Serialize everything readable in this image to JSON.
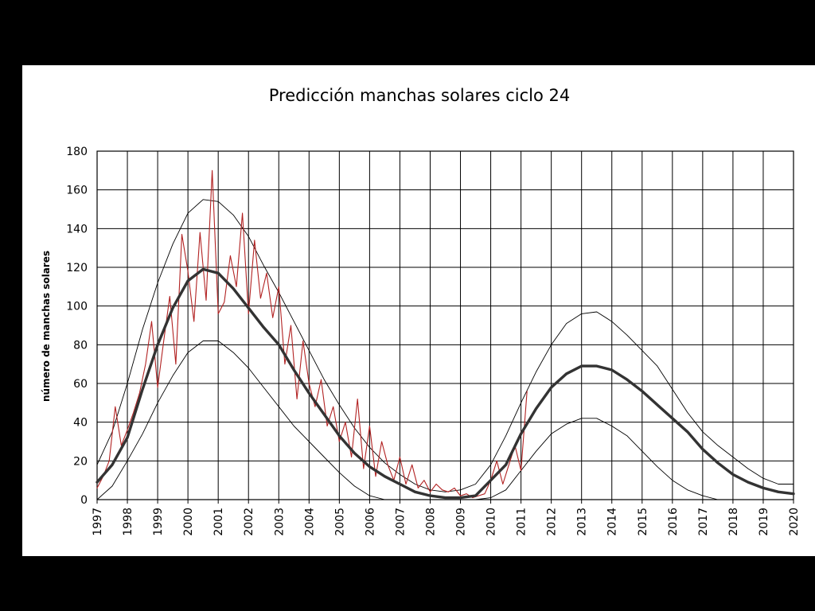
{
  "chart_data": {
    "type": "line",
    "title": "Predicción manchas solares ciclo 24",
    "xlabel": "",
    "ylabel": "número de manchas solares",
    "xlim": [
      1997,
      2020
    ],
    "ylim": [
      0,
      180
    ],
    "yticks": [
      0,
      20,
      40,
      60,
      80,
      100,
      120,
      140,
      160,
      180
    ],
    "xticks": [
      "1997",
      "1998",
      "1999",
      "2000",
      "2001",
      "2002",
      "2003",
      "2004",
      "2005",
      "2006",
      "2007",
      "2008",
      "2009",
      "2010",
      "2011",
      "2012",
      "2013",
      "2014",
      "2015",
      "2016",
      "2017",
      "2018",
      "2019",
      "2020"
    ],
    "grid": true,
    "colors": {
      "background": "#000000",
      "plot_background": "#ffffff",
      "grid": "#000000",
      "prediction": "#333333",
      "bounds": "#000000",
      "observed": "#b22222"
    },
    "series": [
      {
        "role": "prediction",
        "x": [
          1997,
          1997.5,
          1998,
          1998.5,
          1999,
          1999.5,
          2000,
          2000.5,
          2001,
          2001.5,
          2002,
          2002.5,
          2003,
          2003.5,
          2004,
          2004.5,
          2005,
          2005.5,
          2006,
          2006.5,
          2007,
          2007.5,
          2008,
          2008.5,
          2009,
          2009.5,
          2010,
          2010.5,
          2011,
          2011.5,
          2012,
          2012.5,
          2013,
          2013.5,
          2014,
          2014.5,
          2015,
          2015.5,
          2016,
          2016.5,
          2017,
          2017.5,
          2018,
          2018.5,
          2019,
          2019.5,
          2020
        ],
        "y": [
          9,
          18,
          32,
          57,
          80,
          99,
          113,
          119,
          117,
          109,
          99,
          89,
          80,
          67,
          55,
          44,
          33,
          24,
          17,
          12,
          8,
          4,
          2,
          1,
          1,
          2,
          10,
          18,
          34,
          47,
          58,
          65,
          69,
          69,
          67,
          62,
          56,
          49,
          42,
          35,
          26,
          19,
          13,
          9,
          6,
          4,
          3
        ]
      },
      {
        "role": "upper-bound",
        "x": [
          1997,
          1997.5,
          1998,
          1998.5,
          1999,
          1999.5,
          2000,
          2000.5,
          2001,
          2001.5,
          2002,
          2002.5,
          2003,
          2003.5,
          2004,
          2004.5,
          2005,
          2005.5,
          2006,
          2006.5,
          2007,
          2007.5,
          2008,
          2008.5,
          2009,
          2009.5,
          2010,
          2010.5,
          2011,
          2011.5,
          2012,
          2012.5,
          2013,
          2013.5,
          2014,
          2014.5,
          2015,
          2015.5,
          2016,
          2016.5,
          2017,
          2017.5,
          2018,
          2018.5,
          2019,
          2019.5,
          2020
        ],
        "y": [
          18,
          35,
          60,
          88,
          112,
          132,
          148,
          155,
          154,
          147,
          136,
          121,
          107,
          92,
          77,
          62,
          49,
          37,
          27,
          19,
          13,
          8,
          5,
          4,
          5,
          8,
          18,
          33,
          50,
          66,
          80,
          91,
          96,
          97,
          92,
          85,
          77,
          69,
          57,
          45,
          35,
          28,
          22,
          16,
          11,
          8,
          8
        ]
      },
      {
        "role": "lower-bound",
        "x": [
          1997,
          1997.5,
          1998,
          1998.5,
          1999,
          1999.5,
          2000,
          2000.5,
          2001,
          2001.5,
          2002,
          2002.5,
          2003,
          2003.5,
          2004,
          2004.5,
          2005,
          2005.5,
          2006,
          2006.5,
          2007,
          2007.5,
          2008,
          2008.5,
          2009,
          2009.5,
          2010,
          2010.5,
          2011,
          2011.5,
          2012,
          2012.5,
          2013,
          2013.5,
          2014,
          2014.5,
          2015,
          2015.5,
          2016,
          2016.5,
          2017,
          2017.5,
          2018,
          2018.5,
          2019
        ],
        "y": [
          0,
          7,
          20,
          34,
          50,
          64,
          76,
          82,
          82,
          76,
          68,
          58,
          48,
          38,
          30,
          22,
          14,
          7,
          2,
          0,
          0,
          0,
          0,
          0,
          0,
          0,
          1,
          5,
          15,
          25,
          34,
          39,
          42,
          42,
          38,
          33,
          25,
          17,
          10,
          5,
          2,
          0,
          0,
          0,
          0
        ]
      },
      {
        "role": "observed",
        "x": [
          1997,
          1997.2,
          1997.4,
          1997.6,
          1997.8,
          1998,
          1998.2,
          1998.4,
          1998.6,
          1998.8,
          1999,
          1999.2,
          1999.4,
          1999.6,
          1999.8,
          2000,
          2000.2,
          2000.4,
          2000.6,
          2000.8,
          2001,
          2001.2,
          2001.4,
          2001.6,
          2001.8,
          2002,
          2002.2,
          2002.4,
          2002.6,
          2002.8,
          2003,
          2003.2,
          2003.4,
          2003.6,
          2003.8,
          2004,
          2004.2,
          2004.4,
          2004.6,
          2004.8,
          2005,
          2005.2,
          2005.4,
          2005.6,
          2005.8,
          2006,
          2006.2,
          2006.4,
          2006.6,
          2006.8,
          2007,
          2007.2,
          2007.4,
          2007.6,
          2007.8,
          2008,
          2008.2,
          2008.4,
          2008.6,
          2008.8,
          2009,
          2009.2,
          2009.4,
          2009.6,
          2009.8,
          2010,
          2010.2,
          2010.4,
          2010.6,
          2010.8,
          2011,
          2011.2
        ],
        "y": [
          6,
          12,
          20,
          48,
          28,
          36,
          45,
          55,
          70,
          92,
          58,
          82,
          105,
          70,
          137,
          118,
          92,
          138,
          103,
          170,
          96,
          102,
          126,
          110,
          148,
          96,
          134,
          104,
          117,
          94,
          110,
          70,
          90,
          52,
          82,
          60,
          48,
          62,
          38,
          48,
          30,
          40,
          22,
          52,
          16,
          38,
          12,
          30,
          18,
          10,
          22,
          8,
          18,
          6,
          10,
          4,
          8,
          5,
          4,
          6,
          2,
          3,
          1,
          2,
          3,
          10,
          20,
          8,
          18,
          28,
          15,
          56
        ]
      }
    ]
  }
}
